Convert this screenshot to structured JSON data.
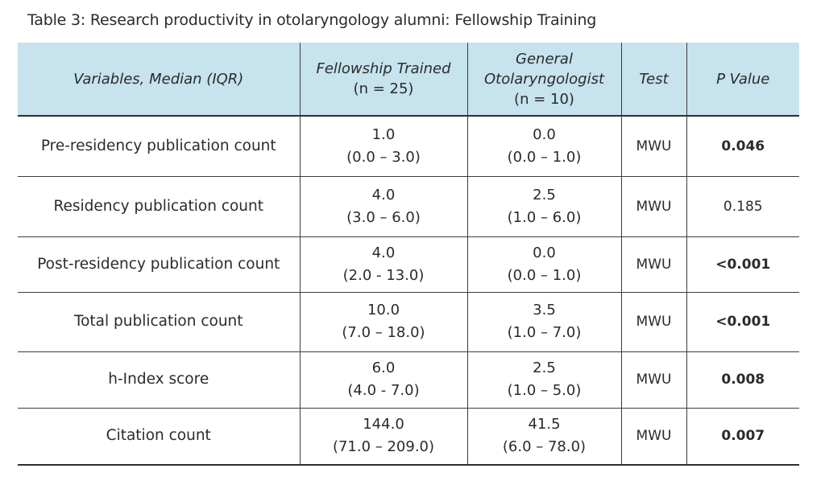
{
  "caption": "Table 3: Research productivity in otolaryngology alumni: Fellowship Training",
  "header": {
    "variables": "Variables, Median (IQR)",
    "fellowship_title": "Fellowship Trained",
    "fellowship_n": "(n = 25)",
    "general_title_line1": "General",
    "general_title_line2": "Otolaryngologist",
    "general_n": "(n = 10)",
    "test": "Test",
    "pvalue": "P Value"
  },
  "rows": [
    {
      "variable": "Pre-residency publication count",
      "fellowship_median": "1.0",
      "fellowship_iqr": "(0.0 – 3.0)",
      "general_median": "0.0",
      "general_iqr": "(0.0 – 1.0)",
      "test": "MWU",
      "p_value": "0.046",
      "significant": true
    },
    {
      "variable": "Residency publication count",
      "fellowship_median": "4.0",
      "fellowship_iqr": "(3.0 – 6.0)",
      "general_median": "2.5",
      "general_iqr": "(1.0 – 6.0)",
      "test": "MWU",
      "p_value": "0.185",
      "significant": false
    },
    {
      "variable": "Post-residency publication count",
      "fellowship_median": "4.0",
      "fellowship_iqr": "(2.0 - 13.0)",
      "general_median": "0.0",
      "general_iqr": "(0.0 – 1.0)",
      "test": "MWU",
      "p_value": "<0.001",
      "significant": true
    },
    {
      "variable": "Total publication count",
      "fellowship_median": "10.0",
      "fellowship_iqr": "(7.0 – 18.0)",
      "general_median": "3.5",
      "general_iqr": "(1.0 – 7.0)",
      "test": "MWU",
      "p_value": "<0.001",
      "significant": true
    },
    {
      "variable": "h-Index score",
      "fellowship_median": "6.0",
      "fellowship_iqr": "(4.0 - 7.0)",
      "general_median": "2.5",
      "general_iqr": "(1.0 – 5.0)",
      "test": "MWU",
      "p_value": "0.008",
      "significant": true
    },
    {
      "variable": "Citation count",
      "fellowship_median": "144.0",
      "fellowship_iqr": "(71.0 – 209.0)",
      "general_median": "41.5",
      "general_iqr": "(6.0 – 78.0)",
      "test": "MWU",
      "p_value": "0.007",
      "significant": true
    }
  ],
  "colors": {
    "header_background": "#c6e3ee",
    "rule": "#3c3c3c",
    "text": "#2b2b2b"
  }
}
